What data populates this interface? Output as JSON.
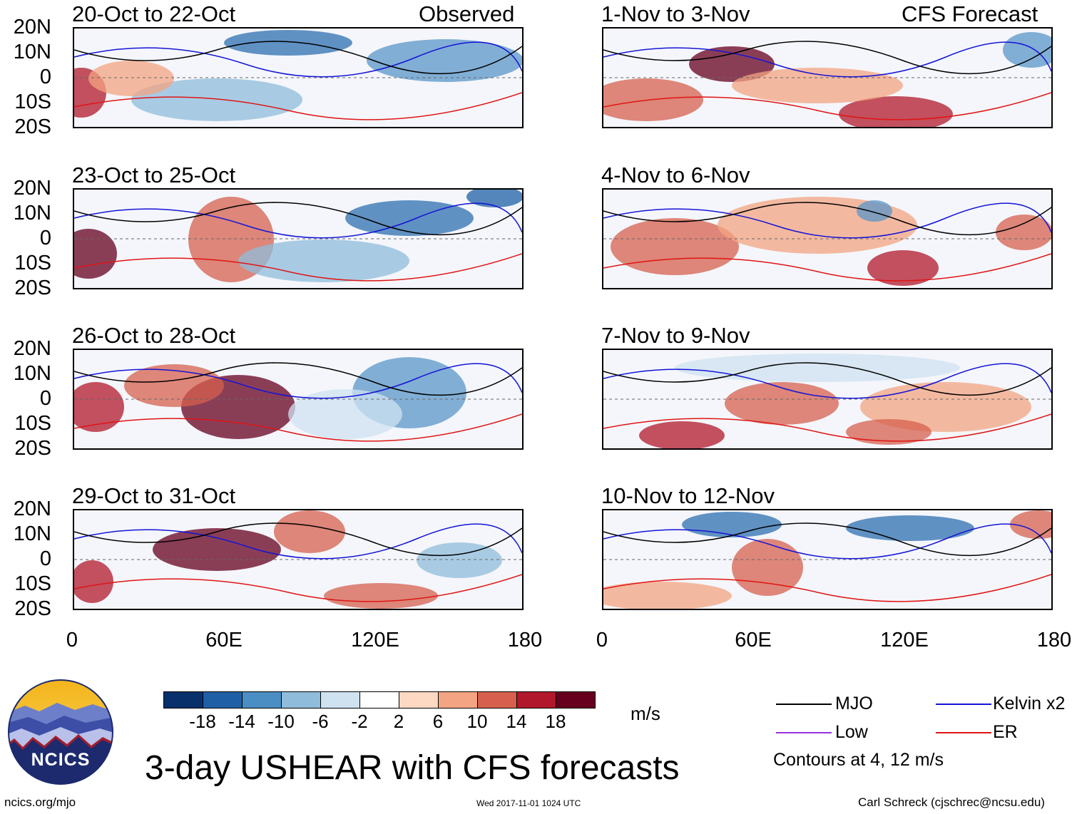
{
  "header": {
    "left_label": "Observed",
    "right_label": "CFS Forecast"
  },
  "panels_left": [
    {
      "title": "20-Oct to 22-Oct"
    },
    {
      "title": "23-Oct to 25-Oct"
    },
    {
      "title": "26-Oct to 28-Oct"
    },
    {
      "title": "29-Oct to 31-Oct"
    }
  ],
  "panels_right": [
    {
      "title": "1-Nov to 3-Nov"
    },
    {
      "title": "4-Nov to 6-Nov"
    },
    {
      "title": "7-Nov to 9-Nov"
    },
    {
      "title": "10-Nov to 12-Nov"
    }
  ],
  "axes": {
    "y_ticks": [
      "20N",
      "10N",
      "0",
      "10S",
      "20S"
    ],
    "x_ticks": [
      "0",
      "60E",
      "120E",
      "180"
    ]
  },
  "colorbar": {
    "labels": [
      "-18",
      "-14",
      "-10",
      "-6",
      "-2",
      "2",
      "6",
      "10",
      "14",
      "18"
    ],
    "colors": [
      "#08306b",
      "#1f5fa6",
      "#4a8ec3",
      "#8fbcdb",
      "#cfe2f0",
      "#ffffff",
      "#fdd8c3",
      "#f3a482",
      "#d6604d",
      "#b2182b",
      "#67001f"
    ],
    "units": "m/s"
  },
  "legend": {
    "items": [
      {
        "label": "MJO",
        "color": "#000000"
      },
      {
        "label": "Kelvin x2",
        "color": "#1414d6"
      },
      {
        "label": "Low",
        "color": "#9b30e0"
      },
      {
        "label": "ER",
        "color": "#e01414"
      }
    ],
    "note": "Contours at 4, 12 m/s"
  },
  "title": "3-day USHEAR with CFS forecasts",
  "logo_text": "NCICS",
  "footer": {
    "left": "ncics.org/mjo",
    "center": "Wed 2017-11-01 1024 UTC",
    "right": "Carl Schreck (cjschrec@ncsu.edu)"
  }
}
